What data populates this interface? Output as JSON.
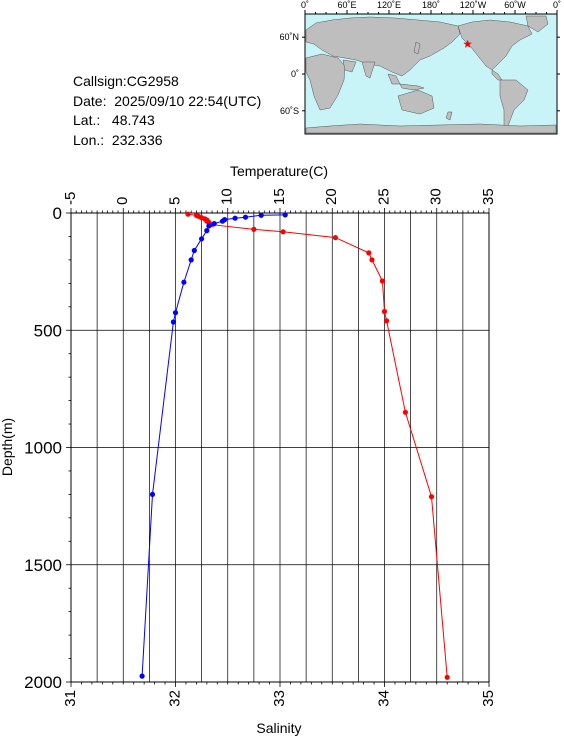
{
  "station": {
    "callsign": "Callsign:CG2958",
    "date": "Date:  2025/09/10 22:54(UTC)",
    "lat": "Lat.:   48.743",
    "lon": "Lon.:  232.336"
  },
  "map": {
    "top_labels": [
      "0˚",
      "60˚E",
      "120˚E",
      "180˚",
      "120˚W",
      "60˚W",
      "0˚"
    ],
    "left_labels": [
      "60˚N",
      "0˚",
      "60˚S"
    ],
    "ocean_color": "#c8f4f8",
    "land_color": "#bebebe",
    "marker": {
      "lon": 232.336,
      "lat": 48.743,
      "color": "#ff0000",
      "symbol": "star"
    }
  },
  "chart_data": {
    "type": "line",
    "y_axis": {
      "label": "Depth(m)",
      "range": [
        0,
        2000
      ],
      "reversed": true,
      "ticks": [
        "0",
        "500",
        "1000",
        "1500",
        "2000"
      ]
    },
    "x_top_axis": {
      "label": "Temperature(C)",
      "range": [
        -5,
        35
      ],
      "ticks": [
        "-5",
        "0",
        "5",
        "10",
        "15",
        "20",
        "25",
        "30",
        "35"
      ]
    },
    "x_bottom_axis": {
      "label": "Salinity",
      "range": [
        31,
        35
      ],
      "ticks": [
        "31",
        "32",
        "33",
        "34",
        "35"
      ]
    },
    "grid": true,
    "series": [
      {
        "color": "#ff0000",
        "axis": "top",
        "points": [
          [
            6.2,
            5
          ],
          [
            7.0,
            10
          ],
          [
            7.2,
            14
          ],
          [
            7.5,
            20
          ],
          [
            7.8,
            25
          ],
          [
            8.0,
            30
          ],
          [
            8.0,
            35
          ],
          [
            8.2,
            40
          ],
          [
            8.5,
            50
          ],
          [
            12.5,
            70
          ],
          [
            15.3,
            80
          ],
          [
            20.3,
            105
          ],
          [
            23.5,
            170
          ],
          [
            23.8,
            200
          ],
          [
            24.8,
            290
          ],
          [
            25.0,
            420
          ],
          [
            25.2,
            460
          ],
          [
            27.0,
            850
          ],
          [
            29.5,
            1210
          ],
          [
            31.0,
            1980
          ]
        ]
      },
      {
        "color": "#0000ff",
        "axis": "bottom",
        "points": [
          [
            33.05,
            8
          ],
          [
            32.82,
            10
          ],
          [
            32.67,
            18
          ],
          [
            32.57,
            22
          ],
          [
            32.47,
            28
          ],
          [
            32.45,
            35
          ],
          [
            32.37,
            45
          ],
          [
            32.32,
            55
          ],
          [
            32.3,
            75
          ],
          [
            32.25,
            110
          ],
          [
            32.18,
            160
          ],
          [
            32.15,
            200
          ],
          [
            32.08,
            295
          ],
          [
            32.0,
            425
          ],
          [
            31.98,
            465
          ],
          [
            31.78,
            1200
          ],
          [
            31.68,
            1975
          ]
        ]
      }
    ]
  }
}
